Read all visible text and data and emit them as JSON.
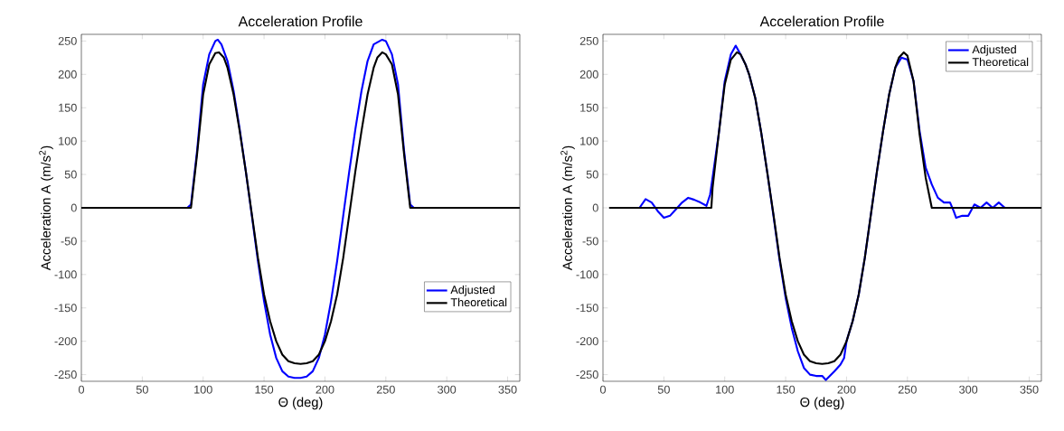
{
  "chart_data": [
    {
      "type": "line",
      "title": "Acceleration Profile",
      "xlabel": "Θ (deg)",
      "ylabel": "Acceleration A (m/s$^{2}$)",
      "xlim": [
        0,
        360
      ],
      "ylim": [
        -260,
        260
      ],
      "xticks": [
        0,
        50,
        100,
        150,
        200,
        250,
        300,
        350
      ],
      "yticks": [
        -250,
        -200,
        -150,
        -100,
        -50,
        0,
        50,
        100,
        150,
        200,
        250
      ],
      "grid": false,
      "legend": "bottom right",
      "line_style": "solid",
      "marker": "none",
      "series": [
        {
          "name": "Adjusted",
          "color": "#0000ff",
          "x": [
            0,
            87,
            90,
            95,
            100,
            105,
            110,
            112,
            115,
            120,
            125,
            130,
            135,
            140,
            145,
            150,
            155,
            160,
            165,
            170,
            175,
            180,
            185,
            190,
            195,
            200,
            205,
            210,
            215,
            220,
            225,
            230,
            235,
            240,
            247,
            250,
            255,
            260,
            265,
            270,
            273,
            360
          ],
          "values": [
            0,
            0,
            5,
            85,
            185,
            230,
            250,
            252,
            245,
            220,
            175,
            118,
            55,
            -12,
            -80,
            -140,
            -190,
            -225,
            -245,
            -253,
            -255,
            -255,
            -253,
            -245,
            -225,
            -190,
            -140,
            -80,
            -12,
            55,
            118,
            175,
            220,
            245,
            252,
            250,
            230,
            185,
            85,
            5,
            0,
            0
          ]
        },
        {
          "name": "Theoretical",
          "color": "#000000",
          "x": [
            0,
            90,
            95,
            100,
            105,
            110,
            113,
            117,
            120,
            125,
            130,
            135,
            140,
            145,
            150,
            155,
            160,
            165,
            170,
            175,
            180,
            185,
            190,
            195,
            200,
            205,
            210,
            215,
            220,
            225,
            230,
            235,
            240,
            243,
            247,
            250,
            255,
            260,
            265,
            270,
            360
          ],
          "values": [
            0,
            0,
            80,
            170,
            215,
            232,
            233,
            225,
            210,
            170,
            115,
            55,
            -10,
            -75,
            -130,
            -170,
            -200,
            -220,
            -230,
            -233,
            -234,
            -233,
            -230,
            -220,
            -200,
            -170,
            -130,
            -75,
            -10,
            55,
            115,
            170,
            210,
            225,
            233,
            230,
            215,
            170,
            80,
            0,
            0
          ]
        }
      ]
    },
    {
      "type": "line",
      "title": "Acceleration Profile",
      "xlabel": "Θ (deg)",
      "ylabel": "Acceleration A (m/s$^{2}$)",
      "xlim": [
        0,
        360
      ],
      "ylim": [
        -260,
        260
      ],
      "xticks": [
        0,
        50,
        100,
        150,
        200,
        250,
        300,
        350
      ],
      "yticks": [
        -250,
        -200,
        -150,
        -100,
        -50,
        0,
        50,
        100,
        150,
        200,
        250
      ],
      "grid": false,
      "legend": "top right",
      "line_style": "solid",
      "marker": "none",
      "series": [
        {
          "name": "Adjusted",
          "color": "#0000ff",
          "x": [
            30,
            35,
            40,
            45,
            50,
            55,
            60,
            65,
            70,
            75,
            80,
            85,
            88,
            90,
            95,
            100,
            105,
            109,
            113,
            117,
            120,
            125,
            130,
            135,
            140,
            145,
            150,
            155,
            160,
            165,
            170,
            175,
            180,
            183,
            190,
            195,
            198,
            200,
            205,
            210,
            215,
            220,
            225,
            230,
            235,
            240,
            245,
            250,
            255,
            260,
            265,
            270,
            275,
            280,
            285,
            288,
            290,
            295,
            300,
            305,
            310,
            315,
            320,
            325,
            330
          ],
          "values": [
            0,
            13,
            8,
            -5,
            -15,
            -12,
            -2,
            8,
            15,
            12,
            8,
            3,
            20,
            45,
            110,
            190,
            230,
            243,
            230,
            215,
            200,
            165,
            112,
            52,
            -12,
            -78,
            -135,
            -180,
            -215,
            -240,
            -250,
            -252,
            -252,
            -258,
            -245,
            -235,
            -225,
            -200,
            -170,
            -130,
            -75,
            -10,
            55,
            115,
            170,
            210,
            225,
            222,
            190,
            115,
            60,
            35,
            15,
            8,
            8,
            -5,
            -15,
            -12,
            -12,
            5,
            0,
            8,
            0,
            8,
            0
          ]
        },
        {
          "name": "Theoretical",
          "color": "#000000",
          "x": [
            5,
            89,
            90,
            95,
            100,
            105,
            110,
            113,
            117,
            120,
            125,
            130,
            135,
            140,
            145,
            150,
            155,
            160,
            165,
            170,
            175,
            180,
            185,
            190,
            195,
            200,
            205,
            210,
            215,
            220,
            225,
            230,
            235,
            240,
            243,
            247,
            250,
            255,
            260,
            265,
            270,
            360
          ],
          "values": [
            0,
            0,
            30,
            110,
            185,
            222,
            233,
            230,
            215,
            200,
            165,
            112,
            52,
            -10,
            -75,
            -130,
            -170,
            -200,
            -220,
            -230,
            -233,
            -234,
            -233,
            -230,
            -220,
            -200,
            -170,
            -130,
            -75,
            -10,
            55,
            115,
            170,
            210,
            225,
            233,
            228,
            190,
            110,
            45,
            0,
            0
          ]
        }
      ]
    }
  ]
}
